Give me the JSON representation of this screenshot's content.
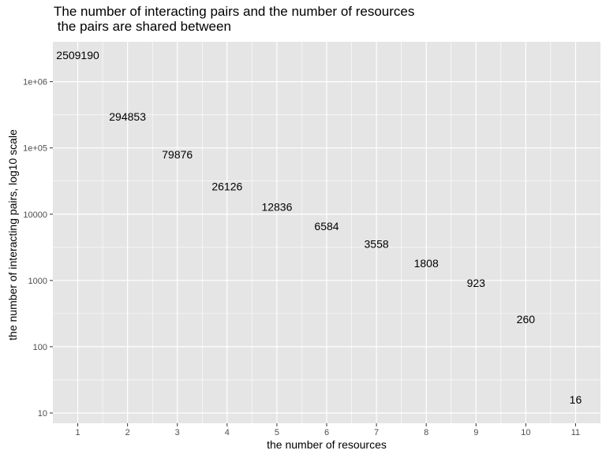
{
  "chart_data": {
    "type": "bar",
    "title": "The number of interacting pairs and the number of resources",
    "subtitle": " the pairs are shared between",
    "xlabel": "the number of resources",
    "ylabel": "the number of interacting pairs, log10 scale",
    "x_scale": "categorical",
    "y_scale": "log10",
    "ylim": [
      7,
      4000000
    ],
    "grid": true,
    "legend": "none",
    "categories": [
      "1",
      "2",
      "3",
      "4",
      "5",
      "6",
      "7",
      "8",
      "9",
      "10",
      "11"
    ],
    "values": [
      2509190,
      294853,
      79876,
      26126,
      12836,
      6584,
      3558,
      1808,
      923,
      260,
      16
    ],
    "data_labels": [
      "2509190",
      "294853",
      "79876",
      "26126",
      "12836",
      "6584",
      "3558",
      "1808",
      "923",
      "260",
      "16"
    ],
    "y_ticks": [
      10,
      100,
      1000,
      10000,
      100000,
      1000000
    ],
    "y_tick_labels": [
      "10",
      "100",
      "1000",
      "10000",
      "1e+05",
      "1e+06"
    ],
    "panel_color": "#e5e5e5",
    "grid_color": "#ffffff",
    "text_color": "#000000",
    "tick_label_color": "#4d4d4d"
  }
}
